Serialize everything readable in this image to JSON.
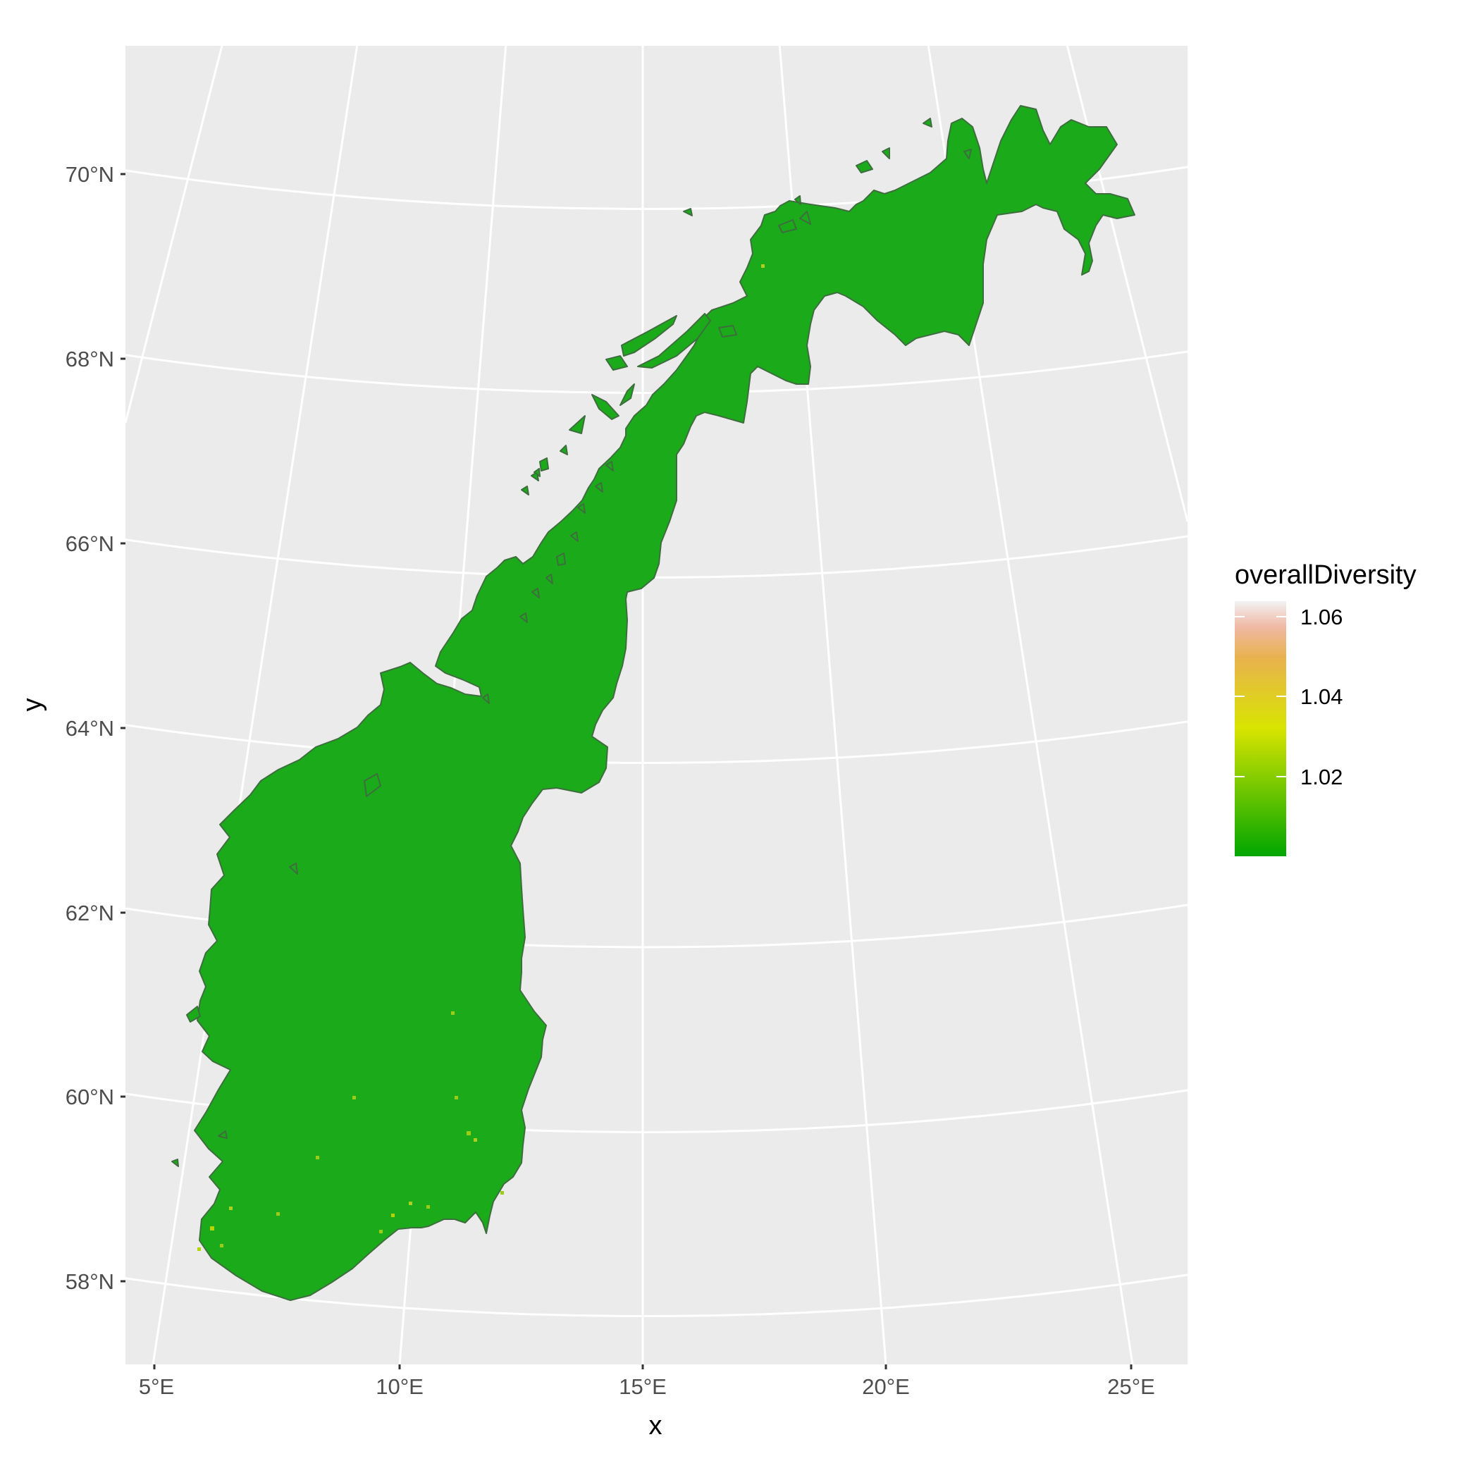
{
  "chart_data": {
    "type": "map",
    "region": "Norway",
    "xlabel": "x",
    "ylabel": "y",
    "x_ticks": [
      "5°E",
      "10°E",
      "15°E",
      "20°E",
      "25°E"
    ],
    "y_ticks": [
      "58°N",
      "60°N",
      "62°N",
      "64°N",
      "66°N",
      "68°N",
      "70°N"
    ],
    "fill": {
      "variable": "overallDiversity",
      "min": 1.0,
      "max": 1.065,
      "breaks": [
        "1.06",
        "1.04",
        "1.02"
      ],
      "palette": [
        "#00a600",
        "#c8e000",
        "#e6b830",
        "#ecb99c",
        "#f2f2f2"
      ],
      "dominant_value": 1.0,
      "land_color": "#1aaa1a",
      "highlight_color": "#b0d020"
    },
    "background_color": "#ebebeb",
    "grid_color": "#ffffff",
    "legend_position": "right"
  }
}
